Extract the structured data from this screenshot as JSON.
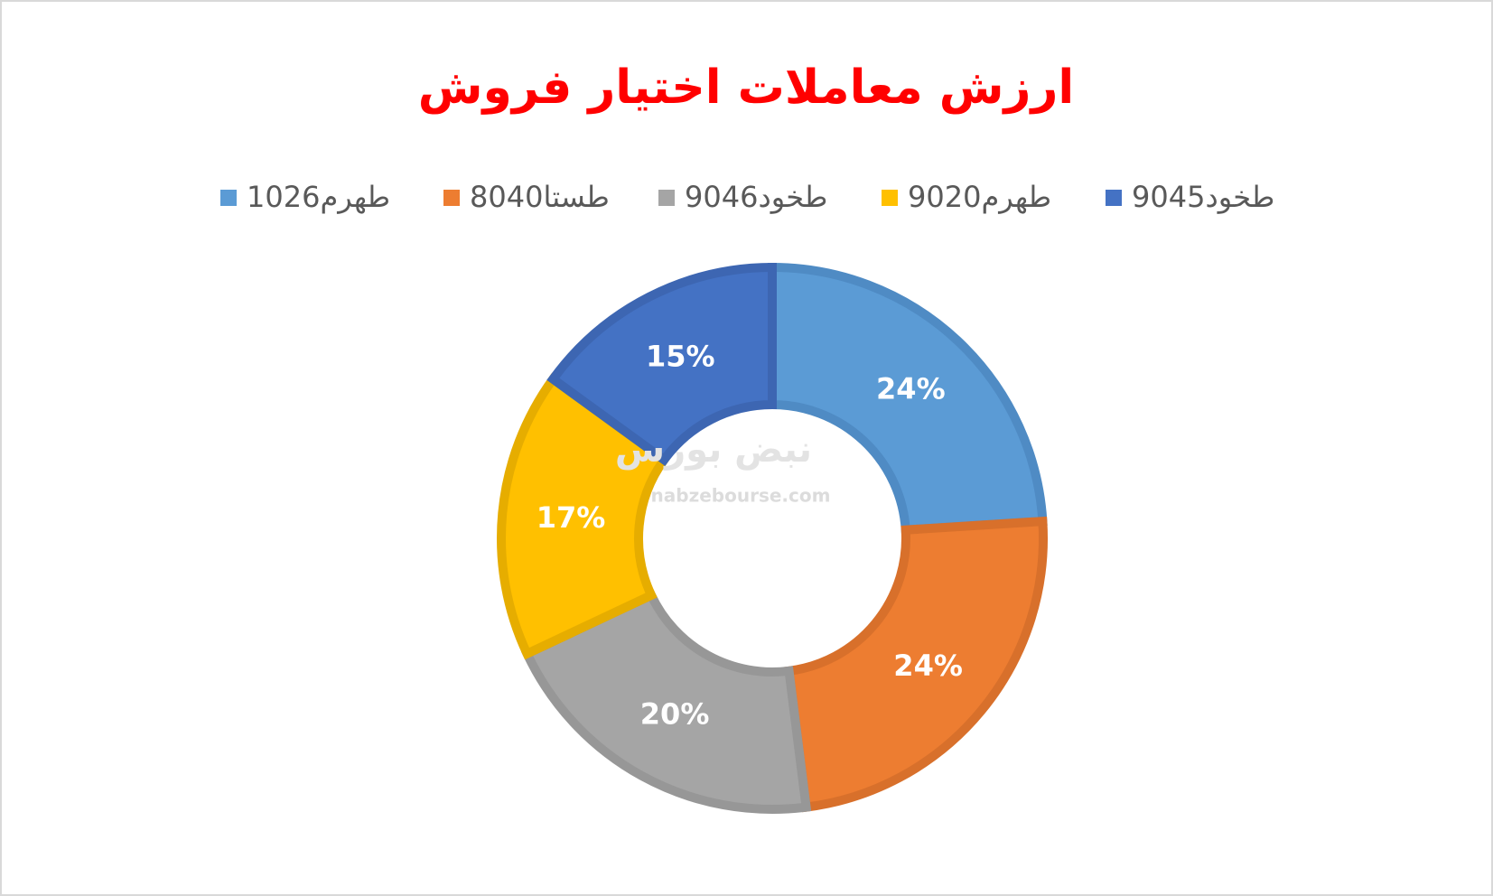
{
  "chart_data": {
    "type": "donut",
    "title": "ارزش معاملات اختیار فروش",
    "categories": [
      "طهرم1026",
      "طستا8040",
      "طخود9046",
      "طهرم9020",
      "طخود9045"
    ],
    "values": [
      24,
      24,
      20,
      17,
      15
    ],
    "value_labels": [
      "24%",
      "24%",
      "20%",
      "17%",
      "15%"
    ],
    "colors": [
      "#5b9bd5",
      "#ed7d31",
      "#a5a5a5",
      "#ffc000",
      "#4472c4"
    ],
    "border_colors": [
      "#4f8bc4",
      "#d8702b",
      "#979797",
      "#e6ad00",
      "#3d66b2"
    ],
    "legend": "top",
    "watermark": "نبض بورس",
    "watermark_url": "nabzebourse.com"
  }
}
